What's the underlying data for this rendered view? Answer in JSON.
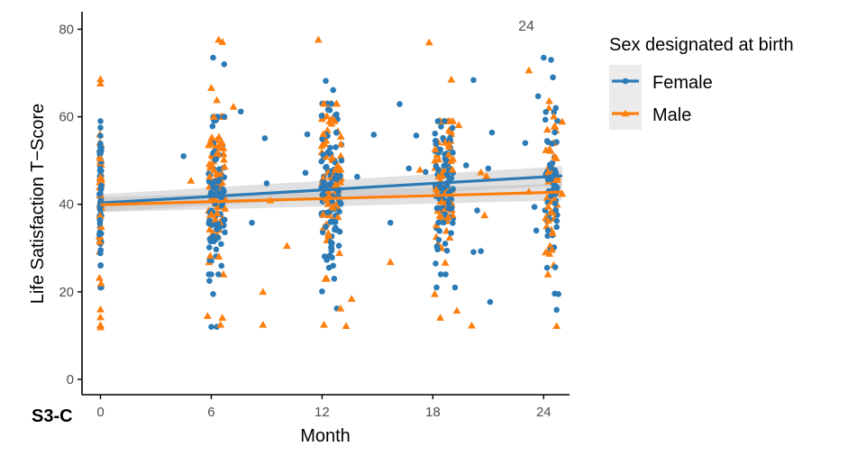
{
  "chart_data": {
    "type": "scatter",
    "title": "",
    "panel_tag": "S3-C",
    "annotation": "24",
    "xlabel": "Month",
    "ylabel": "Life Satisfaction T−Score",
    "xlim": [
      -1,
      25.4
    ],
    "ylim": [
      -3.5,
      84
    ],
    "x_ticks": [
      0,
      6,
      12,
      18,
      24
    ],
    "y_ticks": [
      0,
      20,
      40,
      60,
      80
    ],
    "grid": false,
    "legend": {
      "title": "Sex designated at birth",
      "position": "right"
    },
    "series": [
      {
        "name": "Female",
        "color": "#2c7bb6",
        "marker": "circle",
        "fit": {
          "x0": 0,
          "y0": 40.3,
          "x1": 25,
          "y1": 46.5
        },
        "ci": {
          "x0": 0,
          "lo0": 38.3,
          "hi0": 42.3,
          "x1": 25,
          "lo1": 44.3,
          "hi1": 48.7
        },
        "cluster_counts": [
          56,
          88,
          112,
          92,
          56
        ],
        "points": [
          [
            0,
            59
          ],
          [
            0,
            57.5
          ],
          [
            0,
            21
          ],
          [
            0,
            26
          ],
          [
            6.1,
            73.5
          ],
          [
            6.7,
            72
          ],
          [
            12.2,
            68.2
          ],
          [
            12.6,
            66.1
          ],
          [
            20.2,
            68.4
          ],
          [
            24,
            73.5
          ],
          [
            24.4,
            73
          ],
          [
            24.5,
            69
          ],
          [
            23.7,
            64.7
          ],
          [
            16.2,
            62.9
          ],
          [
            7.6,
            61.2
          ],
          [
            4.5,
            51
          ],
          [
            5.9,
            22.5
          ],
          [
            6.1,
            19.5
          ],
          [
            6.0,
            12
          ],
          [
            6.3,
            12
          ],
          [
            12,
            20.1
          ],
          [
            12.8,
            16.2
          ],
          [
            18.2,
            21
          ],
          [
            19.2,
            21
          ],
          [
            21.1,
            17.7
          ],
          [
            24.6,
            19.6
          ],
          [
            24.8,
            19.5
          ],
          [
            24.7,
            15.9
          ],
          [
            8.2,
            35.8
          ],
          [
            9,
            44.8
          ],
          [
            8.9,
            55.1
          ],
          [
            11.1,
            47.2
          ],
          [
            11.2,
            56
          ],
          [
            13.9,
            46.3
          ],
          [
            14.8,
            55.9
          ],
          [
            15.7,
            35.8
          ],
          [
            16.7,
            48.2
          ],
          [
            17.1,
            55.7
          ],
          [
            17.6,
            47.4
          ],
          [
            19.8,
            48.9
          ],
          [
            20.4,
            38.6
          ],
          [
            21,
            48.2
          ],
          [
            21.2,
            56.4
          ],
          [
            20.2,
            29.1
          ],
          [
            20.6,
            29.3
          ],
          [
            23,
            54
          ],
          [
            23.5,
            39.4
          ],
          [
            23.6,
            34
          ]
        ]
      },
      {
        "name": "Male",
        "color": "#ff7f0e",
        "marker": "triangle",
        "fit": {
          "x0": 0,
          "y0": 39.9,
          "x1": 25,
          "y1": 42.8
        },
        "ci": {
          "x0": 0,
          "lo0": 38.2,
          "hi0": 41.6,
          "x1": 25,
          "lo1": 40.9,
          "hi1": 44.7
        },
        "cluster_counts": [
          40,
          72,
          82,
          70,
          46
        ],
        "points": [
          [
            0,
            68.6
          ],
          [
            0,
            67.6
          ],
          [
            0,
            16
          ],
          [
            0,
            14.2
          ],
          [
            0,
            12.4
          ],
          [
            0,
            11.9
          ],
          [
            6.4,
            77.6
          ],
          [
            6.6,
            77.1
          ],
          [
            11.8,
            77.6
          ],
          [
            17.8,
            77
          ],
          [
            19,
            68.5
          ],
          [
            6.0,
            66.6
          ],
          [
            6.3,
            63.8
          ],
          [
            7.2,
            62.3
          ],
          [
            23.2,
            70.6
          ],
          [
            24.3,
            63.6
          ],
          [
            25,
            58.9
          ],
          [
            4.9,
            45.4
          ],
          [
            5.8,
            14.5
          ],
          [
            6.5,
            12.5
          ],
          [
            6.6,
            14.1
          ],
          [
            8.8,
            12.5
          ],
          [
            8.8,
            20
          ],
          [
            9.2,
            40.9
          ],
          [
            10.1,
            30.5
          ],
          [
            12.1,
            12.5
          ],
          [
            13.3,
            12.2
          ],
          [
            13.0,
            16.2
          ],
          [
            13.6,
            18.4
          ],
          [
            15.7,
            26.8
          ],
          [
            17.3,
            47.9
          ],
          [
            18.4,
            14.1
          ],
          [
            18.1,
            19.5
          ],
          [
            19.3,
            15.7
          ],
          [
            20.1,
            12.3
          ],
          [
            20.8,
            37.5
          ],
          [
            19.4,
            58.1
          ],
          [
            20.6,
            47.3
          ],
          [
            20.9,
            46.5
          ],
          [
            23.2,
            42.9
          ],
          [
            24.7,
            12.2
          ],
          [
            24.3,
            46.3
          ],
          [
            25,
            42.4
          ]
        ]
      }
    ]
  }
}
